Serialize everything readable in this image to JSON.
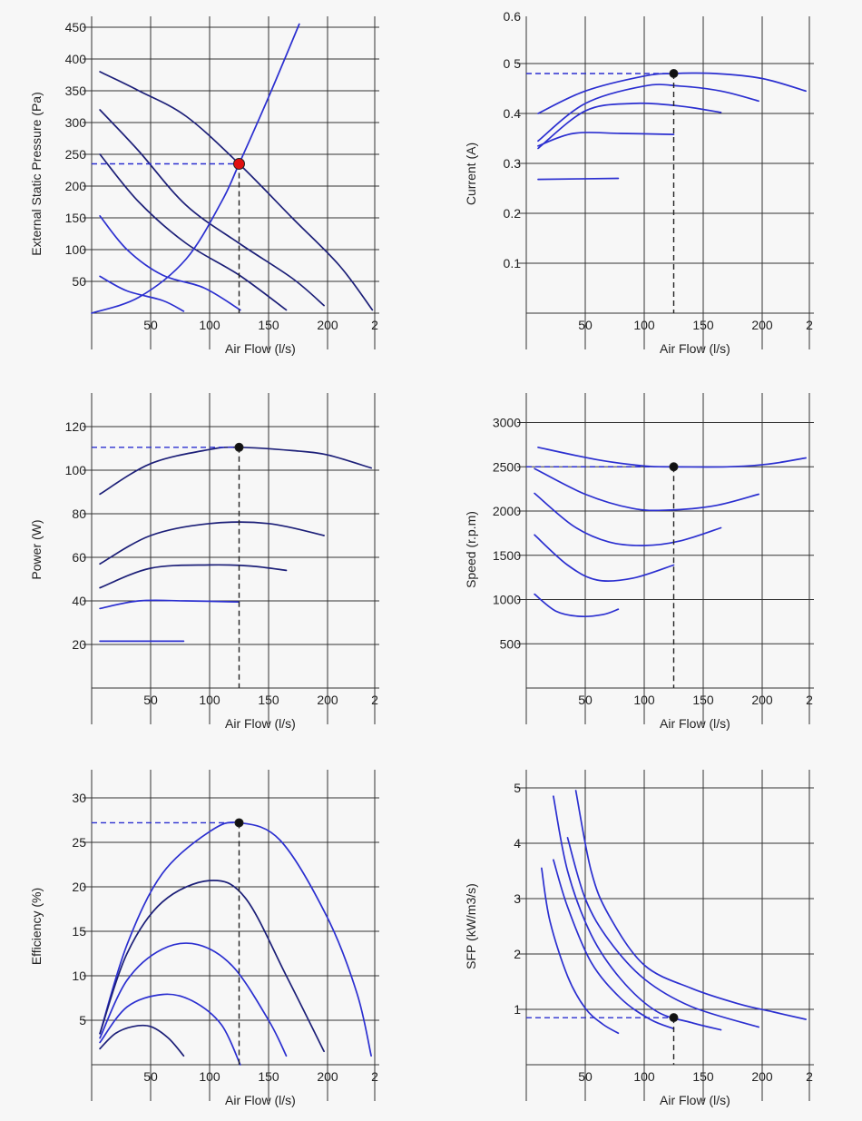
{
  "colors": {
    "curve_blue": "#2b2fd0",
    "curve_navy": "#1c1f78",
    "grid": "#333333",
    "operating_point_highlight": "#e01010",
    "operating_point": "#111111",
    "background": "#f7f7f7"
  },
  "chart_data": [
    {
      "id": "pressure",
      "type": "line",
      "xlabel": "Air Flow (l/s)",
      "ylabel": "External Static Pressure (Pa)",
      "x_ticks": [
        "50",
        "100",
        "150",
        "200",
        "2"
      ],
      "y_ticks": [
        "50",
        "100",
        "150",
        "200",
        "250",
        "300",
        "350",
        "400",
        "450"
      ],
      "xlim": [
        0,
        240
      ],
      "ylim": [
        0,
        470
      ],
      "grid": true,
      "series": [
        {
          "color": "curve_navy",
          "points": [
            [
              7,
              380
            ],
            [
              40,
              350
            ],
            [
              80,
              310
            ],
            [
              125,
              235
            ],
            [
              170,
              150
            ],
            [
              210,
              75
            ],
            [
              238,
              5
            ]
          ]
        },
        {
          "color": "curve_navy",
          "points": [
            [
              7,
              320
            ],
            [
              40,
              255
            ],
            [
              80,
              170
            ],
            [
              125,
              110
            ],
            [
              170,
              55
            ],
            [
              197,
              12
            ]
          ]
        },
        {
          "color": "curve_navy",
          "points": [
            [
              7,
              250
            ],
            [
              40,
              175
            ],
            [
              80,
              110
            ],
            [
              125,
              60
            ],
            [
              165,
              5
            ]
          ]
        },
        {
          "color": "curve_blue",
          "points": [
            [
              7,
              153
            ],
            [
              30,
              100
            ],
            [
              60,
              60
            ],
            [
              95,
              40
            ],
            [
              126,
              5
            ]
          ]
        },
        {
          "color": "curve_blue",
          "points": [
            [
              7,
              58
            ],
            [
              30,
              35
            ],
            [
              60,
              20
            ],
            [
              78,
              3
            ]
          ]
        },
        {
          "color": "curve_blue",
          "points": [
            [
              0,
              0
            ],
            [
              40,
              25
            ],
            [
              80,
              85
            ],
            [
              110,
              175
            ],
            [
              125,
              235
            ],
            [
              150,
              340
            ],
            [
              176,
              455
            ]
          ]
        }
      ],
      "operating_point": {
        "x": 125,
        "y": 235,
        "color": "operating_point_highlight"
      }
    },
    {
      "id": "current",
      "type": "line",
      "xlabel": "Air Flow (l/s)",
      "ylabel": "Current (A)",
      "x_ticks": [
        "50",
        "100",
        "150",
        "200",
        "2"
      ],
      "y_ticks": [
        "0.1",
        "0.2",
        "0.3",
        "0.4",
        "0 5",
        "0.6"
      ],
      "xlim": [
        0,
        240
      ],
      "ylim": [
        0,
        0.6
      ],
      "grid": true,
      "series": [
        {
          "color": "curve_blue",
          "points": [
            [
              10,
              0.4
            ],
            [
              50,
              0.445
            ],
            [
              100,
              0.475
            ],
            [
              125,
              0.48
            ],
            [
              160,
              0.48
            ],
            [
              200,
              0.47
            ],
            [
              237,
              0.445
            ]
          ]
        },
        {
          "color": "curve_blue",
          "points": [
            [
              10,
              0.345
            ],
            [
              50,
              0.42
            ],
            [
              100,
              0.455
            ],
            [
              130,
              0.455
            ],
            [
              165,
              0.445
            ],
            [
              197,
              0.425
            ]
          ]
        },
        {
          "color": "curve_blue",
          "points": [
            [
              10,
              0.33
            ],
            [
              50,
              0.405
            ],
            [
              90,
              0.42
            ],
            [
              130,
              0.415
            ],
            [
              165,
              0.402
            ]
          ]
        },
        {
          "color": "curve_blue",
          "points": [
            [
              10,
              0.335
            ],
            [
              40,
              0.36
            ],
            [
              80,
              0.36
            ],
            [
              125,
              0.358
            ]
          ]
        },
        {
          "color": "curve_blue",
          "points": [
            [
              10,
              0.268
            ],
            [
              78,
              0.27
            ]
          ]
        }
      ],
      "operating_point": {
        "x": 125,
        "y": 0.48,
        "color": "operating_point"
      }
    },
    {
      "id": "power",
      "type": "line",
      "xlabel": "Air Flow (l/s)",
      "ylabel": "Power (W)",
      "x_ticks": [
        "50",
        "100",
        "150",
        "200",
        "2"
      ],
      "y_ticks": [
        "20",
        "40",
        "60",
        "80",
        "100",
        "120"
      ],
      "xlim": [
        0,
        240
      ],
      "ylim": [
        0,
        135
      ],
      "grid": true,
      "series": [
        {
          "color": "curve_navy",
          "points": [
            [
              7,
              89
            ],
            [
              50,
              103
            ],
            [
              100,
              109.5
            ],
            [
              125,
              110.5
            ],
            [
              170,
              109
            ],
            [
              200,
              107
            ],
            [
              237,
              101
            ]
          ]
        },
        {
          "color": "curve_navy",
          "points": [
            [
              7,
              57
            ],
            [
              50,
              70
            ],
            [
              100,
              75.5
            ],
            [
              150,
              75.5
            ],
            [
              197,
              70
            ]
          ]
        },
        {
          "color": "curve_navy",
          "points": [
            [
              7,
              46
            ],
            [
              50,
              55
            ],
            [
              100,
              56.5
            ],
            [
              135,
              56
            ],
            [
              165,
              54
            ]
          ]
        },
        {
          "color": "curve_blue",
          "points": [
            [
              7,
              36.5
            ],
            [
              40,
              40
            ],
            [
              80,
              40
            ],
            [
              125,
              39.5
            ]
          ]
        },
        {
          "color": "curve_blue",
          "points": [
            [
              7,
              21.5
            ],
            [
              78,
              21.5
            ]
          ]
        }
      ],
      "operating_point": {
        "x": 125,
        "y": 110.5,
        "color": "operating_point"
      }
    },
    {
      "id": "speed",
      "type": "line",
      "xlabel": "Air Flow (l/s)",
      "ylabel": "Speed (r.p.m)",
      "x_ticks": [
        "50",
        "100",
        "150",
        "200",
        "2"
      ],
      "y_ticks": [
        "500",
        "1000",
        "1500",
        "2000",
        "2500",
        "3000"
      ],
      "xlim": [
        0,
        240
      ],
      "ylim": [
        0,
        3400
      ],
      "grid": true,
      "series": [
        {
          "color": "curve_blue",
          "points": [
            [
              10,
              2720
            ],
            [
              60,
              2580
            ],
            [
              100,
              2510
            ],
            [
              125,
              2500
            ],
            [
              170,
              2500
            ],
            [
              205,
              2530
            ],
            [
              237,
              2600
            ]
          ]
        },
        {
          "color": "curve_blue",
          "points": [
            [
              7,
              2480
            ],
            [
              50,
              2190
            ],
            [
              90,
              2030
            ],
            [
              120,
              2010
            ],
            [
              160,
              2060
            ],
            [
              197,
              2190
            ]
          ]
        },
        {
          "color": "curve_blue",
          "points": [
            [
              7,
              2200
            ],
            [
              40,
              1830
            ],
            [
              70,
              1650
            ],
            [
              100,
              1610
            ],
            [
              130,
              1660
            ],
            [
              165,
              1810
            ]
          ]
        },
        {
          "color": "curve_blue",
          "points": [
            [
              7,
              1730
            ],
            [
              35,
              1390
            ],
            [
              60,
              1220
            ],
            [
              90,
              1240
            ],
            [
              125,
              1390
            ]
          ]
        },
        {
          "color": "curve_blue",
          "points": [
            [
              7,
              1060
            ],
            [
              25,
              870
            ],
            [
              45,
              810
            ],
            [
              65,
              830
            ],
            [
              78,
              890
            ]
          ]
        }
      ],
      "operating_point": {
        "x": 125,
        "y": 2500,
        "color": "operating_point"
      }
    },
    {
      "id": "efficiency",
      "type": "line",
      "xlabel": "Air Flow (l/s)",
      "ylabel": "Efficiency (%)",
      "x_ticks": [
        "50",
        "100",
        "150",
        "200",
        "2"
      ],
      "y_ticks": [
        "5",
        "10",
        "15",
        "20",
        "25",
        "30"
      ],
      "xlim": [
        0,
        240
      ],
      "ylim": [
        0,
        34
      ],
      "grid": true,
      "series": [
        {
          "color": "curve_blue",
          "points": [
            [
              7,
              3.5
            ],
            [
              30,
              13.5
            ],
            [
              60,
              21.5
            ],
            [
              100,
              26.2
            ],
            [
              125,
              27.2
            ],
            [
              160,
              25.2
            ],
            [
              200,
              16.5
            ],
            [
              225,
              8
            ],
            [
              237,
              1
            ]
          ]
        },
        {
          "color": "curve_navy",
          "points": [
            [
              7,
              3.5
            ],
            [
              30,
              12.5
            ],
            [
              60,
              18.3
            ],
            [
              100,
              20.7
            ],
            [
              130,
              18.8
            ],
            [
              165,
              10
            ],
            [
              197,
              1.5
            ]
          ]
        },
        {
          "color": "curve_blue",
          "points": [
            [
              7,
              3
            ],
            [
              30,
              9.5
            ],
            [
              60,
              13
            ],
            [
              90,
              13.5
            ],
            [
              120,
              11
            ],
            [
              150,
              5
            ],
            [
              165,
              1
            ]
          ]
        },
        {
          "color": "curve_blue",
          "points": [
            [
              7,
              2.5
            ],
            [
              30,
              6.5
            ],
            [
              60,
              7.9
            ],
            [
              85,
              7.2
            ],
            [
              110,
              4.5
            ],
            [
              126,
              0
            ]
          ]
        },
        {
          "color": "curve_navy",
          "points": [
            [
              7,
              1.8
            ],
            [
              20,
              3.5
            ],
            [
              35,
              4.3
            ],
            [
              50,
              4.3
            ],
            [
              65,
              3
            ],
            [
              78,
              1
            ]
          ]
        }
      ],
      "operating_point": {
        "x": 125,
        "y": 27.2,
        "color": "operating_point"
      }
    },
    {
      "id": "sfp",
      "type": "line",
      "xlabel": "Air Flow (l/s)",
      "ylabel": "SFP (kW/m3/s)",
      "x_ticks": [
        "50",
        "100",
        "150",
        "200",
        "2"
      ],
      "y_ticks": [
        "1",
        "2",
        "3",
        "4",
        "5"
      ],
      "xlim": [
        0,
        240
      ],
      "ylim": [
        0,
        5.25
      ],
      "grid": true,
      "series": [
        {
          "color": "curve_blue",
          "points": [
            [
              42,
              4.95
            ],
            [
              55,
              3.5
            ],
            [
              70,
              2.7
            ],
            [
              100,
              1.8
            ],
            [
              140,
              1.38
            ],
            [
              180,
              1.1
            ],
            [
              210,
              0.95
            ],
            [
              237,
              0.82
            ]
          ]
        },
        {
          "color": "curve_blue",
          "points": [
            [
              35,
              4.1
            ],
            [
              50,
              3.0
            ],
            [
              70,
              2.25
            ],
            [
              100,
              1.55
            ],
            [
              140,
              1.05
            ],
            [
              197,
              0.68
            ]
          ]
        },
        {
          "color": "curve_blue",
          "points": [
            [
              23,
              4.85
            ],
            [
              35,
              3.5
            ],
            [
              55,
              2.35
            ],
            [
              80,
              1.55
            ],
            [
              110,
              0.97
            ],
            [
              140,
              0.76
            ],
            [
              165,
              0.63
            ]
          ]
        },
        {
          "color": "curve_blue",
          "points": [
            [
              23,
              3.7
            ],
            [
              35,
              2.85
            ],
            [
              55,
              1.85
            ],
            [
              80,
              1.2
            ],
            [
              105,
              0.82
            ],
            [
              125,
              0.65
            ]
          ]
        },
        {
          "color": "curve_blue",
          "points": [
            [
              13,
              3.55
            ],
            [
              20,
              2.6
            ],
            [
              35,
              1.6
            ],
            [
              50,
              1.02
            ],
            [
              65,
              0.73
            ],
            [
              78,
              0.57
            ]
          ]
        }
      ],
      "operating_point": {
        "x": 125,
        "y": 0.85,
        "color": "operating_point"
      }
    }
  ]
}
